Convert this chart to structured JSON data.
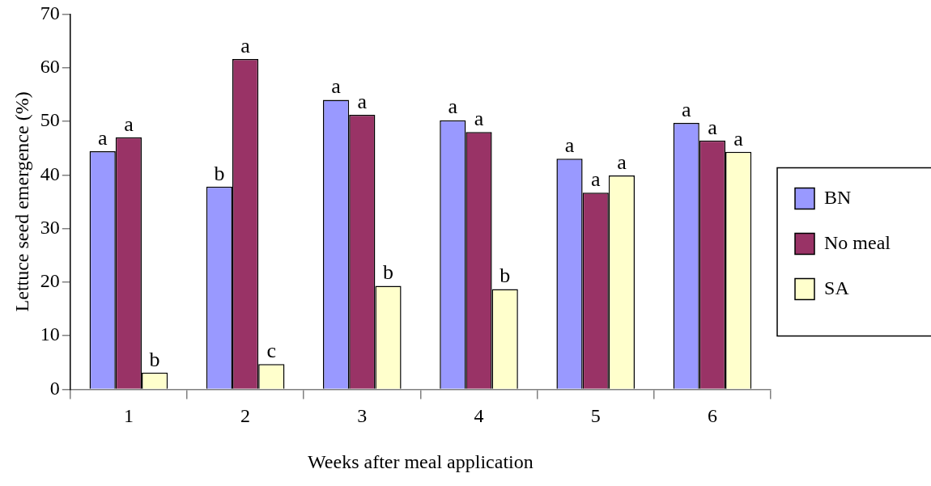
{
  "chart_data": {
    "type": "bar",
    "xlabel": "Weeks after meal application",
    "ylabel": "Lettuce seed emergence (%)",
    "categories": [
      "1",
      "2",
      "3",
      "4",
      "5",
      "6"
    ],
    "series": [
      {
        "name": "BN",
        "color": "#9999ff",
        "values": [
          44.4,
          37.8,
          54.0,
          50.2,
          43.0,
          49.7
        ],
        "value_labels": [
          "a",
          "b",
          "a",
          "a",
          "a",
          "a"
        ]
      },
      {
        "name": "No meal",
        "color": "#993366",
        "values": [
          47.0,
          61.6,
          51.2,
          48.0,
          36.7,
          46.4
        ],
        "value_labels": [
          "a",
          "a",
          "a",
          "a",
          "a",
          "a"
        ]
      },
      {
        "name": "SA",
        "color": "#ffffcc",
        "values": [
          3.1,
          4.7,
          19.3,
          18.7,
          39.9,
          44.3
        ],
        "value_labels": [
          "b",
          "c",
          "b",
          "b",
          "a",
          "a"
        ]
      }
    ],
    "ylim": [
      0,
      70
    ],
    "yticks": [
      0,
      10,
      20,
      30,
      40,
      50,
      60,
      70
    ],
    "grid": false,
    "legend": "right"
  }
}
